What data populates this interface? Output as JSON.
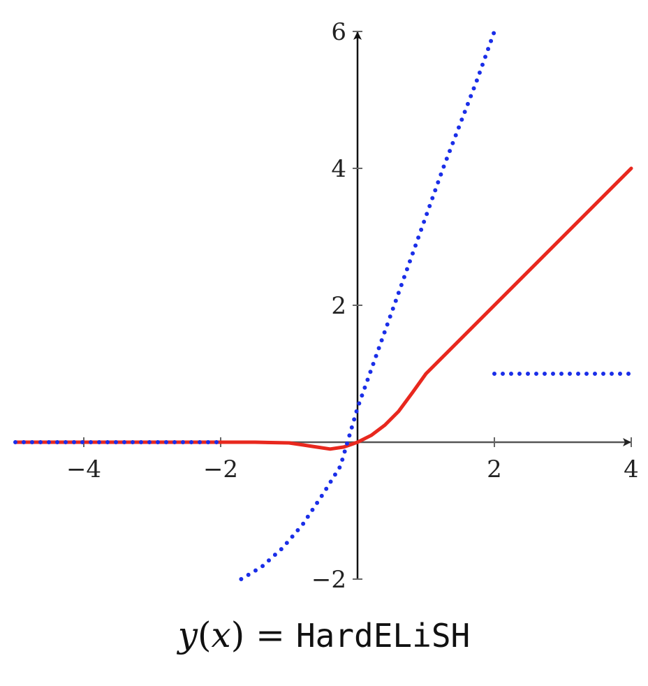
{
  "chart_data": {
    "type": "line",
    "title": "",
    "xlabel": "",
    "ylabel": "",
    "xlim": [
      -5,
      4
    ],
    "ylim": [
      -2,
      6
    ],
    "x_ticks": [
      -4,
      -2,
      2,
      4
    ],
    "y_ticks": [
      -2,
      2,
      4,
      6
    ],
    "x_tick_labels": [
      "−4",
      "−2",
      "2",
      "4"
    ],
    "y_tick_labels": [
      "−2",
      "2",
      "4",
      "6"
    ],
    "grid": false,
    "legend": "none",
    "series": [
      {
        "style": "solid",
        "color": "#e8281e",
        "x": [
          -5,
          -4,
          -3,
          -2,
          -1.5,
          -1,
          -0.8,
          -0.6,
          -0.4,
          -0.2,
          0,
          0.2,
          0.4,
          0.6,
          0.8,
          1,
          1.5,
          2,
          2.5,
          3,
          3.5,
          4
        ],
        "y": [
          0,
          0,
          0,
          0,
          0,
          -0.01,
          -0.04,
          -0.07,
          -0.1,
          -0.07,
          0,
          0.1,
          0.25,
          0.45,
          0.72,
          1,
          1.5,
          2,
          2.5,
          3,
          3.5,
          4
        ]
      },
      {
        "style": "dotted",
        "color": "#1a2ee8",
        "x": [
          -5,
          -4,
          -3,
          -2,
          -1.7,
          -1.4,
          -1.1,
          -0.8,
          -0.5,
          -0.25,
          0,
          0.25,
          0.5,
          0.75,
          1,
          1.25,
          1.5,
          1.75,
          2
        ],
        "y": [
          0,
          0,
          0,
          0,
          -2,
          -1.82,
          -1.55,
          -1.2,
          -0.75,
          -0.35,
          0.5,
          1.2,
          1.9,
          2.6,
          3.3,
          4.0,
          4.65,
          5.3,
          6
        ]
      },
      {
        "style": "dotted",
        "color": "#1a2ee8",
        "x": [
          2,
          4
        ],
        "y": [
          1,
          1
        ]
      }
    ]
  },
  "caption": {
    "y": "y",
    "open_paren": "(",
    "x": "x",
    "close_paren_eq": ") = ",
    "name": "HardELiSH"
  }
}
